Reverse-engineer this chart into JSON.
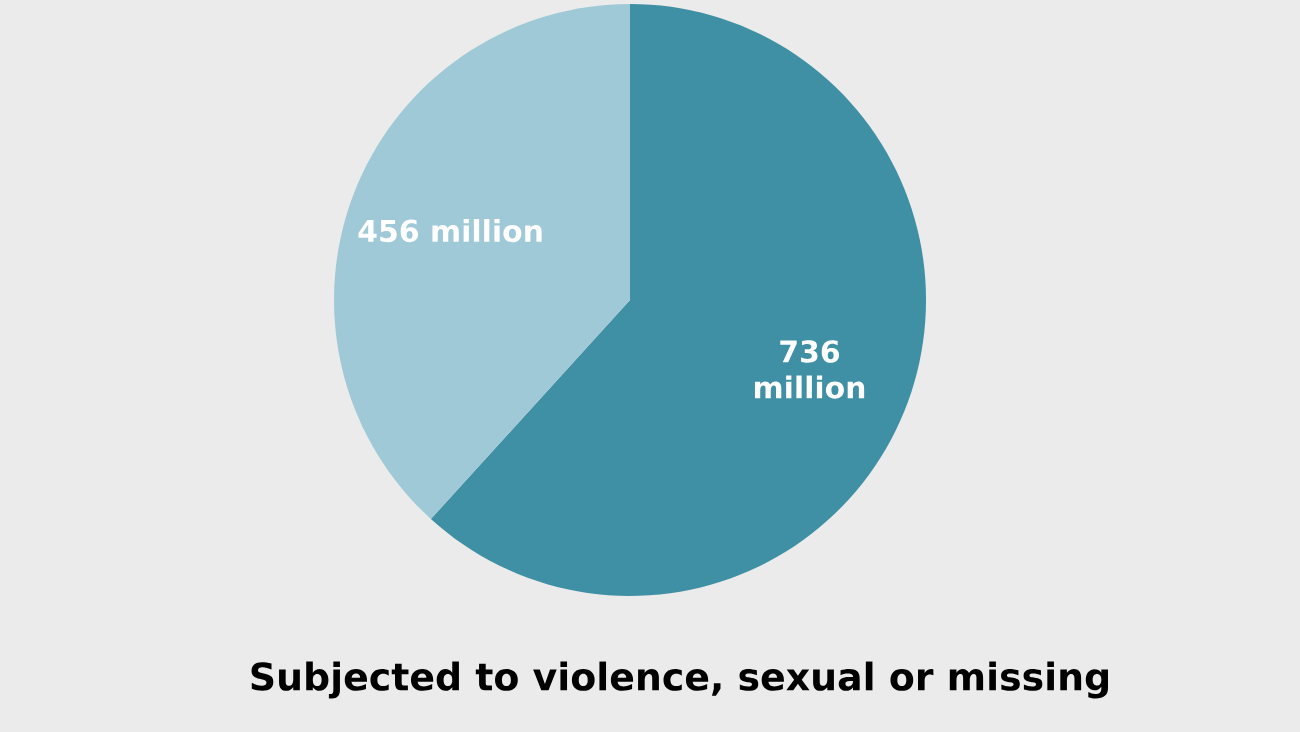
{
  "chart_data": {
    "type": "pie",
    "title": "Subjected to violence, sexual or missing",
    "categories": [
      null,
      null
    ],
    "values": [
      736,
      456
    ],
    "value_labels": [
      "736 million",
      "456 million"
    ],
    "colors": [
      "#3f90a4",
      "#9fc9d7"
    ]
  }
}
